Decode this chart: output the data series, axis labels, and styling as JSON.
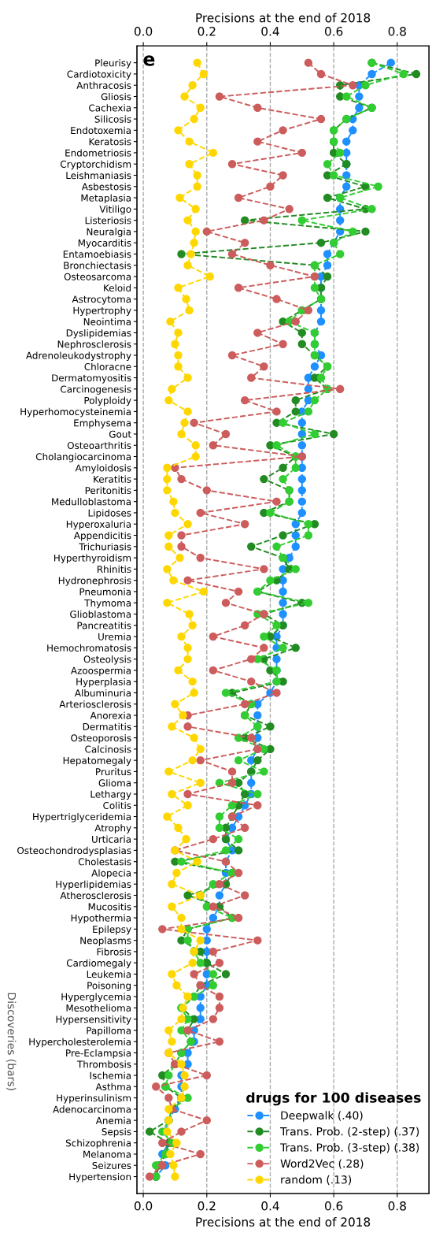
{
  "chart_data": {
    "type": "line",
    "xlabel": "Precisions at the end of 2018",
    "x2label": "Precisions at the end of 2018",
    "legend_title": "drugs for 100 diseases",
    "annotations": [
      "e",
      "Discoveries (bars)"
    ],
    "orientation": "horizontal",
    "categories": [
      "Pleurisy",
      "Cardiotoxicity",
      "Anthracosis",
      "Gliosis",
      "Cachexia",
      "Silicosis",
      "Endotoxemia",
      "Keratosis",
      "Endometriosis",
      "Cryptorchidism",
      "Leishmaniasis",
      "Asbestosis",
      "Metaplasia",
      "Vitiligo",
      "Listeriosis",
      "Neuralgia",
      "Myocarditis",
      "Entamoebiasis",
      "Bronchiectasis",
      "Osteosarcoma",
      "Keloid",
      "Astrocytoma",
      "Hypertrophy",
      "Neointima",
      "Dyslipidemias",
      "Nephrosclerosis",
      "Adrenoleukodystrophy",
      "Chloracne",
      "Dermatomyositis",
      "Carcinogenesis",
      "Polyploidy",
      "Hyperhomocysteinemia",
      "Emphysema",
      "Gout",
      "Osteoarthritis",
      "Cholangiocarcinoma",
      "Amyloidosis",
      "Keratitis",
      "Peritonitis",
      "Medulloblastoma",
      "Lipidoses",
      "Hyperoxaluria",
      "Appendicitis",
      "Trichuriasis",
      "Hyperthyroidism",
      "Rhinitis",
      "Hydronephrosis",
      "Pneumonia",
      "Thymoma",
      "Glioblastoma",
      "Pancreatitis",
      "Uremia",
      "Hemochromatosis",
      "Osteolysis",
      "Azoospermia",
      "Hyperplasia",
      "Albuminuria",
      "Arteriosclerosis",
      "Anorexia",
      "Dermatitis",
      "Osteoporosis",
      "Calcinosis",
      "Hepatomegaly",
      "Pruritus",
      "Glioma",
      "Lethargy",
      "Colitis",
      "Hypertriglyceridemia",
      "Atrophy",
      "Urticaria",
      "Osteochondrodysplasias",
      "Cholestasis",
      "Alopecia",
      "Hyperlipidemias",
      "Atherosclerosis",
      "Mucositis",
      "Hypothermia",
      "Epilepsy",
      "Neoplasms",
      "Fibrosis",
      "Cardiomegaly",
      "Leukemia",
      "Poisoning",
      "Hyperglycemia",
      "Mesothelioma",
      "Hypersensitivity",
      "Papilloma",
      "Hypercholesterolemia",
      "Pre-Eclampsia",
      "Thrombosis",
      "Ischemia",
      "Asthma",
      "Hyperinsulinism",
      "Adenocarcinoma",
      "Anemia",
      "Sepsis",
      "Schizophrenia",
      "Melanoma",
      "Seizures",
      "Hypertension"
    ],
    "series": [
      {
        "name": "Deepwalk (.40)",
        "color": "#1e90ff",
        "values": [
          0.78,
          0.72,
          0.68,
          0.68,
          0.68,
          0.66,
          0.66,
          0.64,
          0.64,
          0.64,
          0.64,
          0.64,
          0.62,
          0.62,
          0.62,
          0.62,
          0.6,
          0.58,
          0.58,
          0.56,
          0.56,
          0.56,
          0.56,
          0.56,
          0.54,
          0.54,
          0.56,
          0.54,
          0.52,
          0.52,
          0.52,
          0.5,
          0.5,
          0.5,
          0.5,
          0.5,
          0.5,
          0.5,
          0.5,
          0.5,
          0.5,
          0.48,
          0.48,
          0.48,
          0.46,
          0.44,
          0.44,
          0.44,
          0.44,
          0.44,
          0.44,
          0.42,
          0.42,
          0.42,
          0.42,
          0.42,
          0.4,
          0.36,
          0.36,
          0.36,
          0.36,
          0.36,
          0.34,
          0.34,
          0.34,
          0.34,
          0.32,
          0.3,
          0.28,
          0.26,
          0.28,
          0.26,
          0.26,
          0.26,
          0.24,
          0.24,
          0.22,
          0.2,
          0.2,
          0.2,
          0.2,
          0.2,
          0.2,
          0.18,
          0.18,
          0.18,
          0.16,
          0.16,
          0.14,
          0.14,
          0.12,
          0.12,
          0.12,
          0.1,
          0.08,
          0.07,
          0.08,
          0.06,
          0.07,
          0.04
        ]
      },
      {
        "name": "Trans. Prob. (2-step) (.37)",
        "color": "#228b22",
        "values": [
          0.72,
          0.86,
          0.62,
          0.62,
          0.72,
          0.64,
          0.6,
          0.6,
          0.6,
          0.64,
          0.58,
          0.7,
          0.58,
          0.7,
          0.32,
          0.7,
          0.56,
          0.12,
          0.54,
          0.58,
          0.56,
          0.56,
          0.5,
          0.44,
          0.5,
          0.5,
          0.54,
          0.58,
          0.54,
          0.58,
          0.48,
          0.48,
          0.42,
          0.6,
          0.4,
          0.48,
          0.44,
          0.38,
          0.46,
          0.46,
          0.38,
          0.54,
          0.44,
          0.34,
          0.44,
          0.46,
          0.42,
          0.36,
          0.5,
          0.38,
          0.44,
          0.4,
          0.48,
          0.38,
          0.4,
          0.44,
          0.28,
          0.34,
          0.32,
          0.4,
          0.32,
          0.4,
          0.36,
          0.34,
          0.3,
          0.32,
          0.3,
          0.28,
          0.26,
          0.26,
          0.3,
          0.1,
          0.28,
          0.26,
          0.14,
          0.24,
          0.28,
          0.14,
          0.12,
          0.18,
          0.2,
          0.26,
          0.18,
          0.16,
          0.12,
          0.16,
          0.14,
          0.15,
          0.12,
          0.1,
          0.06,
          0.07,
          0.12,
          0.09,
          0.08,
          0.02,
          0.08,
          0.07,
          0.05,
          0.04
        ]
      },
      {
        "name": "Trans. Prob. (3-step) (.38)",
        "color": "#32cd32",
        "values": [
          0.72,
          0.82,
          0.7,
          0.64,
          0.72,
          0.64,
          0.6,
          0.6,
          0.62,
          0.58,
          0.6,
          0.74,
          0.62,
          0.72,
          0.5,
          0.66,
          0.6,
          0.62,
          0.54,
          0.54,
          0.54,
          0.56,
          0.5,
          0.46,
          0.54,
          0.54,
          0.54,
          0.58,
          0.56,
          0.58,
          0.54,
          0.52,
          0.44,
          0.54,
          0.42,
          0.48,
          0.48,
          0.44,
          0.46,
          0.46,
          0.4,
          0.52,
          0.52,
          0.42,
          0.44,
          0.48,
          0.4,
          0.36,
          0.52,
          0.36,
          0.42,
          0.38,
          0.44,
          0.36,
          0.42,
          0.42,
          0.26,
          0.34,
          0.32,
          0.36,
          0.3,
          0.38,
          0.3,
          0.38,
          0.24,
          0.36,
          0.28,
          0.24,
          0.24,
          0.3,
          0.26,
          0.12,
          0.28,
          0.22,
          0.18,
          0.2,
          0.28,
          0.14,
          0.14,
          0.16,
          0.18,
          0.22,
          0.22,
          0.16,
          0.12,
          0.14,
          0.12,
          0.15,
          0.12,
          0.1,
          0.08,
          0.07,
          0.14,
          0.09,
          0.08,
          0.06,
          0.09,
          0.07,
          0.04,
          0.04
        ]
      },
      {
        "name": "Word2Vec (.28)",
        "color": "#cd5c5c",
        "values": [
          0.52,
          0.56,
          0.66,
          0.24,
          0.36,
          0.56,
          0.44,
          0.36,
          0.5,
          0.28,
          0.44,
          0.4,
          0.3,
          0.46,
          0.38,
          0.2,
          0.32,
          0.28,
          0.4,
          0.54,
          0.3,
          0.42,
          0.52,
          0.48,
          0.36,
          0.44,
          0.28,
          0.38,
          0.34,
          0.62,
          0.32,
          0.42,
          0.16,
          0.26,
          0.22,
          0.5,
          0.1,
          0.12,
          0.2,
          0.42,
          0.18,
          0.32,
          0.12,
          0.12,
          0.18,
          0.38,
          0.14,
          0.3,
          0.26,
          0.38,
          0.32,
          0.22,
          0.38,
          0.34,
          0.22,
          0.34,
          0.42,
          0.32,
          0.14,
          0.14,
          0.34,
          0.36,
          0.18,
          0.28,
          0.28,
          0.14,
          0.36,
          0.28,
          0.32,
          0.22,
          0.1,
          0.26,
          0.3,
          0.24,
          0.32,
          0.22,
          0.3,
          0.06,
          0.36,
          0.22,
          0.24,
          0.16,
          0.18,
          0.24,
          0.24,
          0.22,
          0.14,
          0.24,
          0.08,
          0.1,
          0.2,
          0.04,
          0.08,
          0.09,
          0.2,
          0.12,
          0.06,
          0.18,
          0.06,
          0.02
        ]
      },
      {
        "name": "random (.13)",
        "color": "#ffd700",
        "values": [
          0.17,
          0.19,
          0.155,
          0.13,
          0.18,
          0.16,
          0.11,
          0.145,
          0.22,
          0.145,
          0.17,
          0.17,
          0.115,
          0.165,
          0.14,
          0.165,
          0.16,
          0.15,
          0.14,
          0.21,
          0.11,
          0.135,
          0.145,
          0.085,
          0.11,
          0.1,
          0.11,
          0.11,
          0.14,
          0.09,
          0.08,
          0.14,
          0.13,
          0.12,
          0.165,
          0.165,
          0.075,
          0.075,
          0.075,
          0.095,
          0.1,
          0.14,
          0.08,
          0.08,
          0.115,
          0.075,
          0.095,
          0.19,
          0.075,
          0.145,
          0.155,
          0.12,
          0.14,
          0.14,
          0.11,
          0.155,
          0.16,
          0.1,
          0.125,
          0.09,
          0.16,
          0.18,
          0.155,
          0.08,
          0.18,
          0.09,
          0.14,
          0.075,
          0.11,
          0.135,
          0.1,
          0.17,
          0.105,
          0.09,
          0.18,
          0.09,
          0.12,
          0.12,
          0.18,
          0.16,
          0.155,
          0.09,
          0.105,
          0.14,
          0.125,
          0.12,
          0.08,
          0.09,
          0.08,
          0.12,
          0.13,
          0.13,
          0.12,
          0.08,
          0.08,
          0.075,
          0.105,
          0.085,
          0.095,
          0.1
        ]
      }
    ],
    "xlim": [
      -0.02,
      0.9
    ],
    "xticks": [
      {
        "value": 0,
        "label": "0.0"
      },
      {
        "value": 0.2,
        "label": "0.2"
      },
      {
        "value": 0.4,
        "label": "0.4"
      },
      {
        "value": 0.6,
        "label": "0.6"
      },
      {
        "value": 0.8,
        "label": "0.8"
      }
    ],
    "x2lim": [
      -0.02,
      0.9
    ],
    "x2ticks": [
      {
        "value": 0,
        "label": "0.0"
      },
      {
        "value": 0.2,
        "label": "0.2"
      },
      {
        "value": 0.4,
        "label": "0.4"
      },
      {
        "value": 0.6,
        "label": "0.6"
      },
      {
        "value": 0.8,
        "label": "0.8"
      }
    ],
    "grid": "x",
    "legend": "bottom right",
    "marker": "circle",
    "line_style": "dashed"
  }
}
